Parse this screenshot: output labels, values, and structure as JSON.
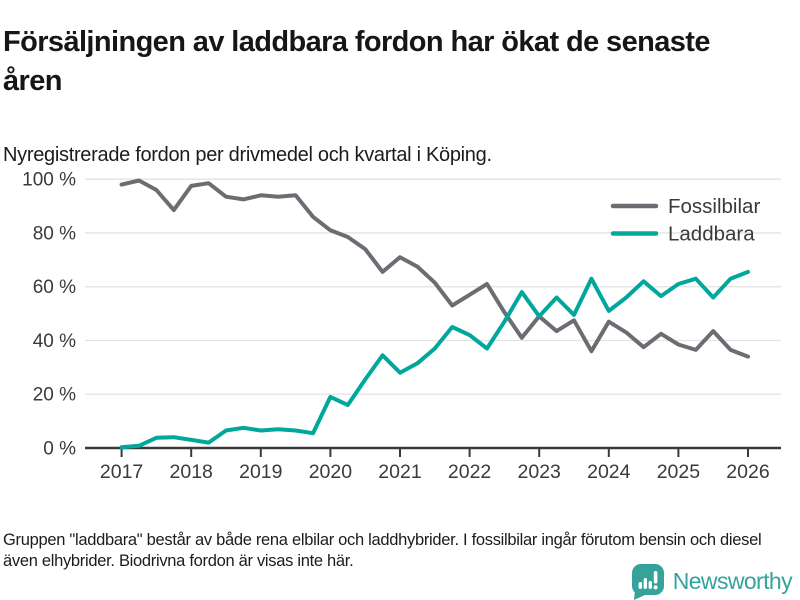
{
  "header": {
    "title": "Försäljningen av laddbara fordon har ökat de senaste åren",
    "subtitle": "Nyregistrerade fordon per drivmedel och kvartal i Köping."
  },
  "chart_data": {
    "type": "line",
    "title": "Försäljningen av laddbara fordon har ökat de senaste åren",
    "subtitle": "Nyregistrerade fordon per drivmedel och kvartal i Köping.",
    "grid": "horizontal",
    "legend_position": "top-right",
    "ylim": [
      0,
      100
    ],
    "y_unit": "%",
    "y_tick_values": [
      0,
      20,
      40,
      60,
      80,
      100
    ],
    "y_tick_labels": [
      "0 %",
      "20 %",
      "40 %",
      "60 %",
      "80 %",
      "100 %"
    ],
    "x_tick_labels": [
      "2017",
      "2018",
      "2019",
      "2020",
      "2021",
      "2022",
      "2023",
      "2024",
      "2025",
      "2026"
    ],
    "x_quarters": [
      "2017K1",
      "2017K2",
      "2017K3",
      "2017K4",
      "2018K1",
      "2018K2",
      "2018K3",
      "2018K4",
      "2019K1",
      "2019K2",
      "2019K3",
      "2019K4",
      "2020K1",
      "2020K2",
      "2020K3",
      "2020K4",
      "2021K1",
      "2021K2",
      "2021K3",
      "2021K4",
      "2022K1",
      "2022K2",
      "2022K3",
      "2022K4",
      "2023K1",
      "2023K2",
      "2023K3",
      "2023K4",
      "2024K1",
      "2024K2",
      "2024K3",
      "2024K4",
      "2025K1",
      "2025K2",
      "2025K3",
      "2025K4",
      "2026K1"
    ],
    "series": [
      {
        "name": "Fossilbilar",
        "color": "#6a6d71",
        "values": [
          98,
          99.5,
          96,
          88.5,
          97.5,
          98.5,
          93.5,
          92.5,
          94,
          93.5,
          94,
          86,
          81,
          78.5,
          74,
          65.5,
          71,
          67.5,
          61.5,
          53,
          57,
          61,
          50.5,
          41,
          49,
          43.5,
          47.5,
          36,
          47,
          43,
          37.5,
          42.5,
          38.5,
          36.5,
          43.5,
          36.5,
          34
        ]
      },
      {
        "name": "Laddbara",
        "color": "#00a79c",
        "values": [
          0.3,
          0.8,
          3.8,
          4,
          3,
          2,
          6.5,
          7.5,
          6.5,
          7,
          6.5,
          5.5,
          19,
          16,
          25.5,
          34.5,
          28,
          31.5,
          37,
          45,
          42,
          37,
          47,
          58,
          49,
          56,
          49.5,
          63,
          51,
          56,
          62,
          56.5,
          61,
          63,
          56,
          63,
          65.5
        ]
      }
    ]
  },
  "footer": {
    "note": "Gruppen \"laddbara\" består av både rena elbilar och laddhybrider. I fossilbilar ingår förutom bensin och diesel även elhybrider. Biodrivna fordon är visas inte här.",
    "brand": "Newsworthy",
    "brand_color": "#35a29b"
  },
  "colors": {
    "gridline": "#e3e3e3",
    "axis": "#3a3a3a",
    "tick_label": "#3a3a3a",
    "legend_text": "#222222"
  }
}
